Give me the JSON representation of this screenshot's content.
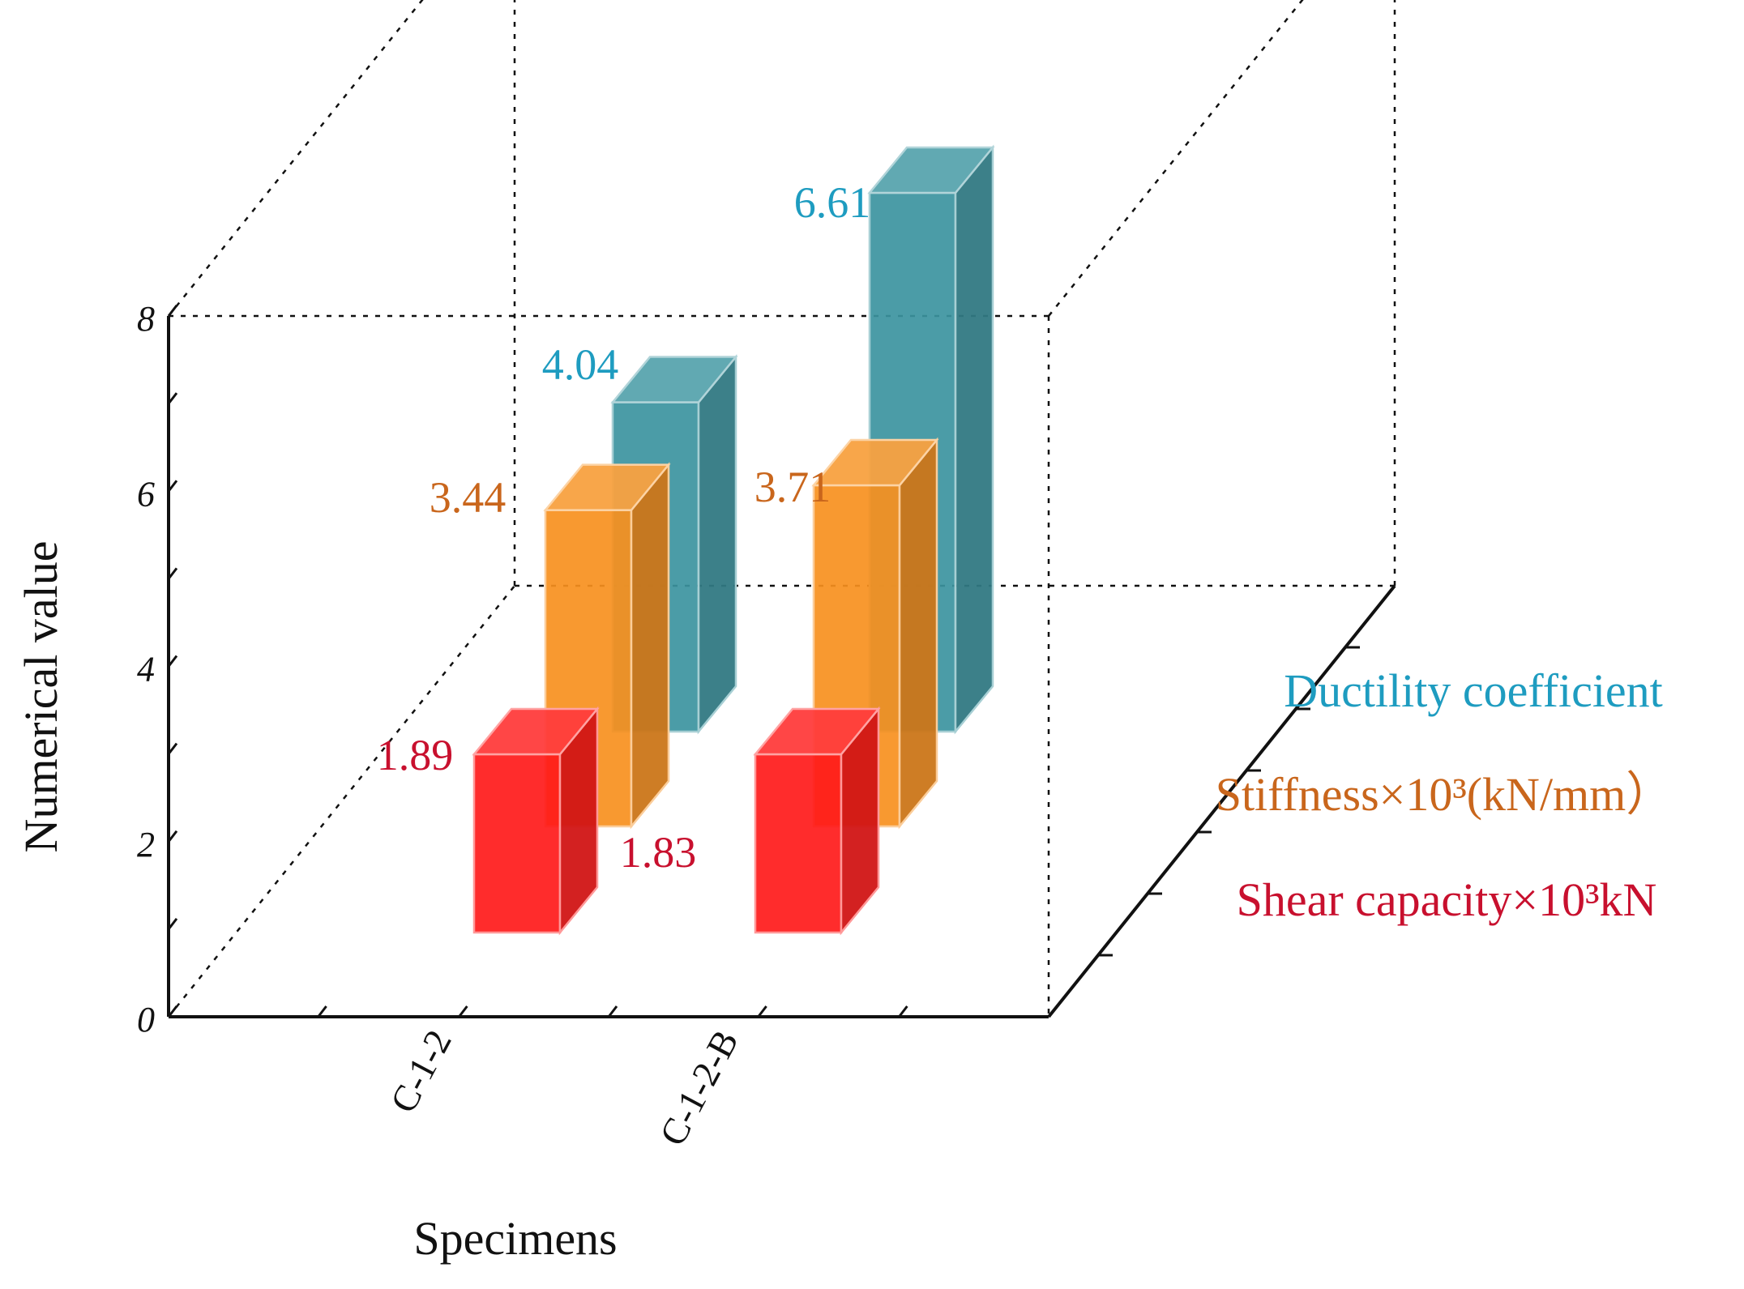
{
  "chart_data": {
    "type": "bar",
    "title": "",
    "xlabel": "Specimens",
    "ylabel": "Numerical value",
    "ylim": [
      0,
      8
    ],
    "yticks": [
      "0",
      "2",
      "4",
      "6",
      "8"
    ],
    "categories": [
      "C-1-2",
      "C-1-2-B"
    ],
    "series": [
      {
        "name": "Shear capacity×10³kN",
        "color": "#ff1a1a",
        "label_color": "#c8102e",
        "values": [
          1.89,
          1.83
        ],
        "value_labels": [
          "1.89",
          "1.83"
        ]
      },
      {
        "name": "Stiffness×10³(kN/mm）",
        "color": "#f7901e",
        "label_color": "#c9661c",
        "values": [
          3.44,
          3.71
        ],
        "value_labels": [
          "3.44",
          "3.71"
        ]
      },
      {
        "name": "Ductility coefficient",
        "color": "#3c94a0",
        "label_color": "#1e9cc0",
        "values": [
          4.04,
          6.61
        ],
        "value_labels": [
          "4.04",
          "6.61"
        ]
      }
    ],
    "legend_position": "right",
    "grid": false
  }
}
